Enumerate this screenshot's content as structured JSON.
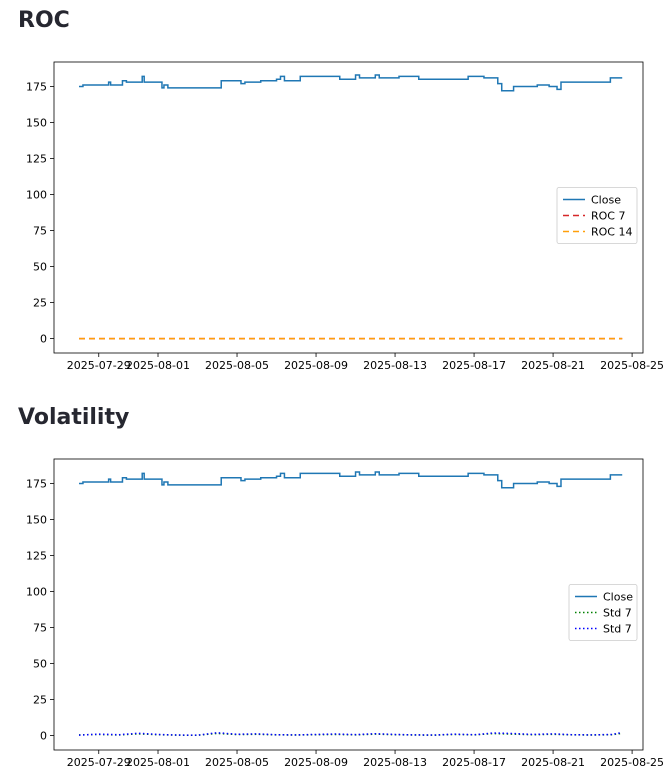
{
  "sections": {
    "roc_title": "ROC",
    "volatility_title": "Volatility"
  },
  "colors": {
    "close": "#1f77b4",
    "roc7": "#d62728",
    "roc14": "#ff9f0a",
    "std7_a": "#008000",
    "std7_b": "#0000ff"
  },
  "chart_data": [
    {
      "type": "line",
      "title": "ROC",
      "xlabel": "",
      "ylabel": "",
      "x_range": [
        "2025-07-28",
        "2025-08-26"
      ],
      "ylim": [
        -10,
        192
      ],
      "yticks": [
        0,
        25,
        50,
        75,
        100,
        125,
        150,
        175
      ],
      "xticks": [
        "2025-07-29",
        "2025-08-01",
        "2025-08-05",
        "2025-08-09",
        "2025-08-13",
        "2025-08-17",
        "2025-08-21",
        "2025-08-25"
      ],
      "legend_position": "center-right",
      "series": [
        {
          "name": "Close",
          "style": "solid",
          "color": "#1f77b4",
          "x": [
            0,
            0.2,
            1.4,
            1.5,
            1.6,
            2.0,
            2.2,
            2.4,
            2.6,
            3.0,
            3.2,
            3.3,
            3.4,
            3.8,
            4.0,
            4.2,
            4.3,
            4.5,
            7.0,
            7.2,
            8.0,
            8.2,
            8.4,
            9.0,
            9.2,
            10.0,
            10.2,
            10.4,
            11.0,
            11.2,
            11.4,
            13.0,
            13.2,
            14.0,
            14.2,
            15.0,
            15.2,
            16.0,
            16.2,
            17.0,
            17.2,
            18.5,
            18.7,
            19.5,
            19.7,
            20.3,
            20.5,
            21.2,
            21.4,
            22.0,
            22.2,
            23.0,
            23.2,
            23.8,
            24.0,
            24.2,
            24.4,
            26.7,
            26.9,
            27.5
          ],
          "y": [
            175,
            176,
            176,
            178,
            176,
            176,
            179,
            178,
            178,
            178,
            182,
            178,
            178,
            178,
            178,
            174,
            176,
            174,
            174,
            179,
            179,
            177,
            178,
            178,
            179,
            180,
            182,
            179,
            179,
            182,
            182,
            182,
            180,
            183,
            181,
            183,
            181,
            181,
            182,
            182,
            180,
            180,
            180,
            180,
            182,
            182,
            181,
            177,
            172,
            175,
            175,
            175,
            176,
            175,
            175,
            173,
            178,
            178,
            181,
            181
          ]
        },
        {
          "name": "ROC 7",
          "style": "dashed",
          "color": "#d62728",
          "x": [
            0,
            27.5
          ],
          "y": [
            0,
            0
          ]
        },
        {
          "name": "ROC 14",
          "style": "dashed",
          "color": "#ff9f0a",
          "x": [
            0,
            27.5
          ],
          "y": [
            0,
            0
          ]
        }
      ]
    },
    {
      "type": "line",
      "title": "Volatility",
      "xlabel": "",
      "ylabel": "",
      "x_range": [
        "2025-07-28",
        "2025-08-26"
      ],
      "ylim": [
        -10,
        192
      ],
      "yticks": [
        0,
        25,
        50,
        75,
        100,
        125,
        150,
        175
      ],
      "xticks": [
        "2025-07-29",
        "2025-08-01",
        "2025-08-05",
        "2025-08-09",
        "2025-08-13",
        "2025-08-17",
        "2025-08-21",
        "2025-08-25"
      ],
      "legend_position": "center-right",
      "series": [
        {
          "name": "Close",
          "style": "solid",
          "color": "#1f77b4",
          "x": [
            0,
            0.2,
            1.4,
            1.5,
            1.6,
            2.0,
            2.2,
            2.4,
            2.6,
            3.0,
            3.2,
            3.3,
            3.4,
            3.8,
            4.0,
            4.2,
            4.3,
            4.5,
            7.0,
            7.2,
            8.0,
            8.2,
            8.4,
            9.0,
            9.2,
            10.0,
            10.2,
            10.4,
            11.0,
            11.2,
            11.4,
            13.0,
            13.2,
            14.0,
            14.2,
            15.0,
            15.2,
            16.0,
            16.2,
            17.0,
            17.2,
            18.5,
            18.7,
            19.5,
            19.7,
            20.3,
            20.5,
            21.2,
            21.4,
            22.0,
            22.2,
            23.0,
            23.2,
            23.8,
            24.0,
            24.2,
            24.4,
            26.7,
            26.9,
            27.5
          ],
          "y": [
            175,
            176,
            176,
            178,
            176,
            176,
            179,
            178,
            178,
            178,
            182,
            178,
            178,
            178,
            178,
            174,
            176,
            174,
            174,
            179,
            179,
            177,
            178,
            178,
            179,
            180,
            182,
            179,
            179,
            182,
            182,
            182,
            180,
            183,
            181,
            183,
            181,
            181,
            182,
            182,
            180,
            180,
            180,
            180,
            182,
            182,
            181,
            177,
            172,
            175,
            175,
            175,
            176,
            175,
            175,
            173,
            178,
            178,
            181,
            181
          ]
        },
        {
          "name": "Std 7",
          "style": "dotted",
          "color": "#008000",
          "x": [
            0,
            1,
            2,
            3,
            4,
            5,
            6,
            7,
            8,
            9,
            10,
            11,
            12,
            13,
            14,
            15,
            16,
            17,
            18,
            19,
            20,
            21,
            22,
            23,
            24,
            25,
            26,
            27,
            27.5
          ],
          "y": [
            0.5,
            0.8,
            0.4,
            1.2,
            0.6,
            0.3,
            0.2,
            1.5,
            0.7,
            0.9,
            0.5,
            0.4,
            0.6,
            0.8,
            0.5,
            1.0,
            0.6,
            0.4,
            0.3,
            0.8,
            0.5,
            1.4,
            1.0,
            0.6,
            0.9,
            0.5,
            0.4,
            0.6,
            1.6
          ]
        },
        {
          "name": "Std 7",
          "style": "dotted",
          "color": "#0000ff",
          "x": [
            0,
            1,
            2,
            3,
            4,
            5,
            6,
            7,
            8,
            9,
            10,
            11,
            12,
            13,
            14,
            15,
            16,
            17,
            18,
            19,
            20,
            21,
            22,
            23,
            24,
            25,
            26,
            27,
            27.5
          ],
          "y": [
            0.3,
            1.0,
            0.6,
            1.6,
            0.8,
            0.4,
            0.3,
            2.0,
            0.9,
            1.2,
            0.6,
            0.5,
            0.8,
            1.1,
            0.7,
            1.3,
            0.8,
            0.5,
            0.4,
            1.0,
            0.6,
            1.8,
            1.4,
            0.8,
            1.2,
            0.6,
            0.5,
            0.8,
            2.2
          ]
        }
      ]
    }
  ]
}
